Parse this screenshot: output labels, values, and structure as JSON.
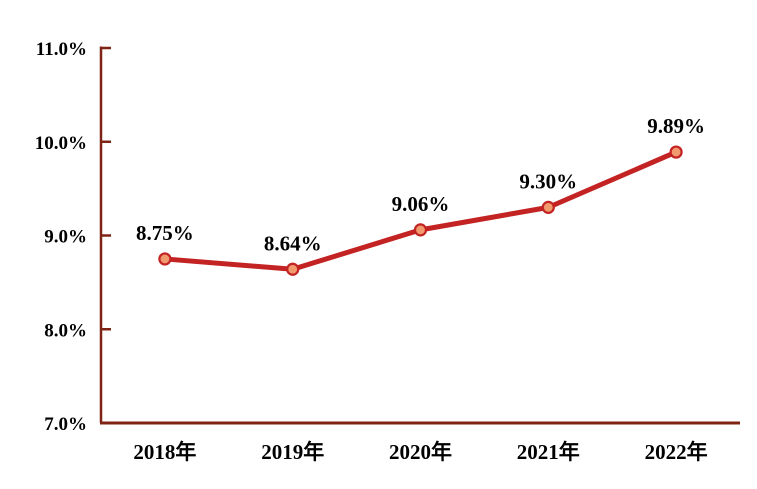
{
  "chart_data": {
    "type": "line",
    "title": "",
    "categories": [
      "2018年",
      "2019年",
      "2020年",
      "2021年",
      "2022年"
    ],
    "series": [
      {
        "name": "rate",
        "values": [
          8.75,
          8.64,
          9.06,
          9.3,
          9.89
        ],
        "point_labels": [
          "8.75%",
          "8.64%",
          "9.06%",
          "9.30%",
          "9.89%"
        ]
      }
    ],
    "xlabel": "",
    "ylabel": "",
    "ylim": [
      7,
      11
    ],
    "y_ticks": [
      7,
      8,
      9,
      10,
      11
    ],
    "y_tick_labels": [
      "7.0%",
      "8.0%",
      "9.0%",
      "10.0%",
      "11.0%"
    ],
    "grid": false,
    "legend": "none",
    "colors": {
      "line": "#c42323",
      "marker_fill": "#f09a6e",
      "marker_stroke": "#c42323",
      "axis": "#7f2414",
      "text": "#000000",
      "background": "#ffffff"
    }
  }
}
